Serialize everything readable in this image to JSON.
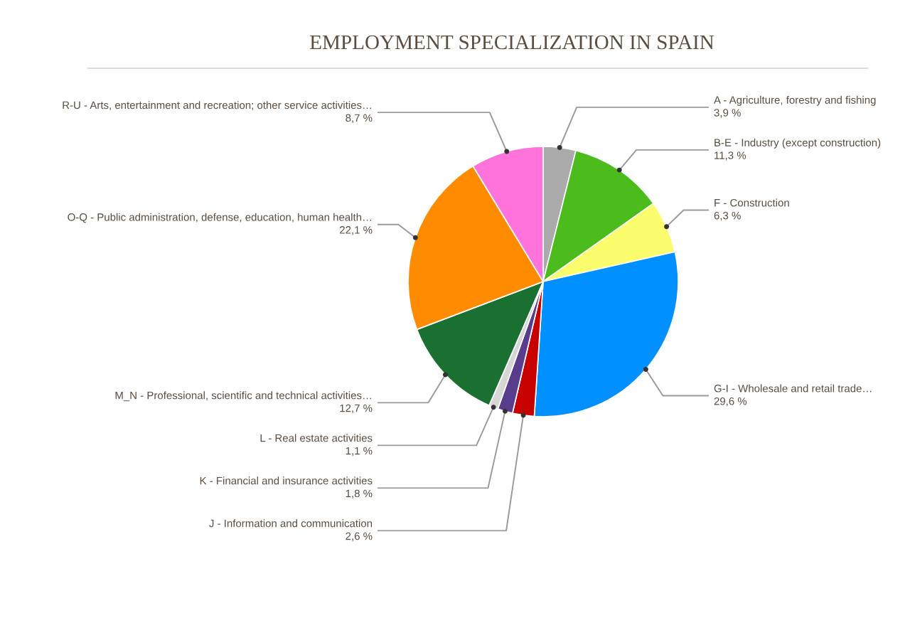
{
  "chart_data": {
    "type": "pie",
    "title": "EMPLOYMENT SPECIALIZATION IN SPAIN",
    "categories": [
      "A - Agriculture, forestry and fishing",
      "B-E - Industry (except construction)",
      "F - Construction",
      "G-I - Wholesale and retail trade…",
      "J - Information and communication",
      "K - Financial and insurance activities",
      "L - Real estate activities",
      "M_N - Professional, scientific and technical activities…",
      "O-Q - Public administration, defense, education, human health…",
      "R-U - Arts, entertainment and recreation; other service activities…"
    ],
    "values": [
      3.9,
      11.3,
      6.3,
      29.6,
      2.6,
      1.8,
      1.1,
      12.7,
      22.1,
      8.7
    ],
    "value_labels": [
      "3,9 %",
      "11,3 %",
      "6,3 %",
      "29,6 %",
      "2,6 %",
      "1,8 %",
      "1,1 %",
      "12,7 %",
      "22,1 %",
      "8,7 %"
    ],
    "colors": [
      "#aaaaaa",
      "#4cbb1c",
      "#fbfd6c",
      "#0090ff",
      "#c70000",
      "#583d8c",
      "#d6d6d6",
      "#1a7030",
      "#ff8c00",
      "#ff73da"
    ]
  }
}
